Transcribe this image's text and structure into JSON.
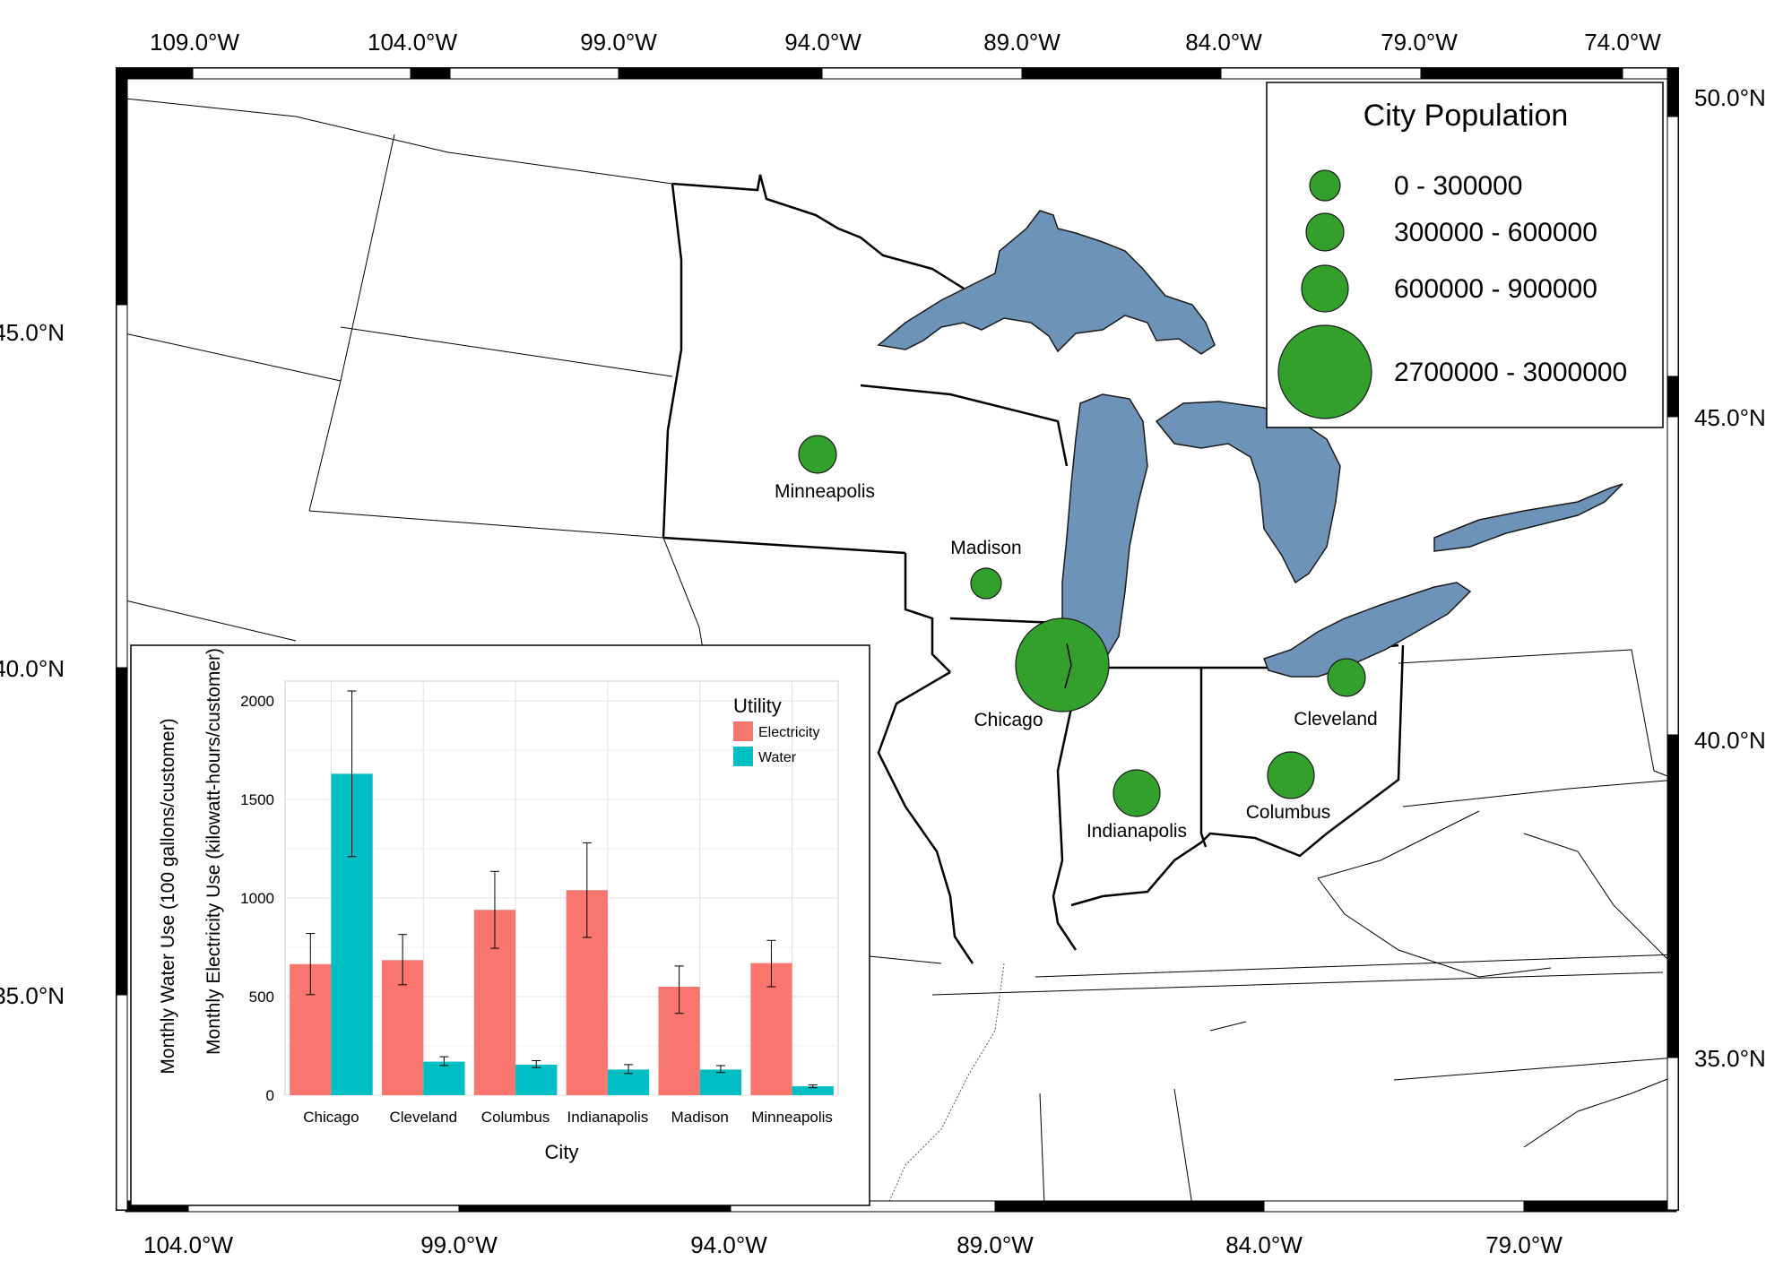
{
  "map": {
    "top_ticks": [
      "109.0°W",
      "104.0°W",
      "99.0°W",
      "94.0°W",
      "89.0°W",
      "84.0°W",
      "79.0°W",
      "74.0°W"
    ],
    "bottom_ticks": [
      "104.0°W",
      "99.0°W",
      "94.0°W",
      "89.0°W",
      "84.0°W",
      "79.0°W"
    ],
    "left_ticks": [
      "45.0°N",
      "40.0°N",
      "35.0°N"
    ],
    "right_ticks": [
      "50.0°N",
      "45.0°N",
      "40.0°N",
      "35.0°N"
    ],
    "colors": {
      "lake": "#6d93b8",
      "city": "#33a02c",
      "border": "#000000"
    }
  },
  "cities": [
    {
      "name": "Minneapolis",
      "size_class": 2
    },
    {
      "name": "Madison",
      "size_class": 1
    },
    {
      "name": "Chicago",
      "size_class": 4
    },
    {
      "name": "Cleveland",
      "size_class": 2
    },
    {
      "name": "Indianapolis",
      "size_class": 3
    },
    {
      "name": "Columbus",
      "size_class": 3
    }
  ],
  "legend": {
    "title": "City Population",
    "items": [
      {
        "label": "0 - 300000"
      },
      {
        "label": "300000 - 600000"
      },
      {
        "label": "600000 - 900000"
      },
      {
        "label": "2700000 - 3000000"
      }
    ]
  },
  "chart_data": {
    "type": "bar",
    "xlabel": "City",
    "ylabel_outer": "Monthly Water Use (100 gallons/customer)",
    "ylabel_inner": "Monthly Electricity Use (kilowatt-hours/customer)",
    "ylim": [
      0,
      2100
    ],
    "yticks": [
      0,
      500,
      1000,
      1500,
      2000
    ],
    "grid": true,
    "legend_position": "top-right",
    "legend_title": "Utility",
    "categories": [
      "Chicago",
      "Cleveland",
      "Columbus",
      "Indianapolis",
      "Madison",
      "Minneapolis"
    ],
    "series": [
      {
        "name": "Electricity",
        "color": "#f8766d",
        "values": [
          665,
          685,
          940,
          1040,
          550,
          670
        ],
        "err_low": [
          510,
          560,
          745,
          800,
          415,
          550
        ],
        "err_high": [
          820,
          815,
          1135,
          1280,
          655,
          785
        ]
      },
      {
        "name": "Water",
        "color": "#00bfc4",
        "values": [
          1630,
          170,
          155,
          130,
          130,
          45
        ],
        "err_low": [
          1210,
          150,
          140,
          110,
          115,
          38
        ],
        "err_high": [
          2050,
          195,
          175,
          155,
          150,
          52
        ]
      }
    ]
  }
}
